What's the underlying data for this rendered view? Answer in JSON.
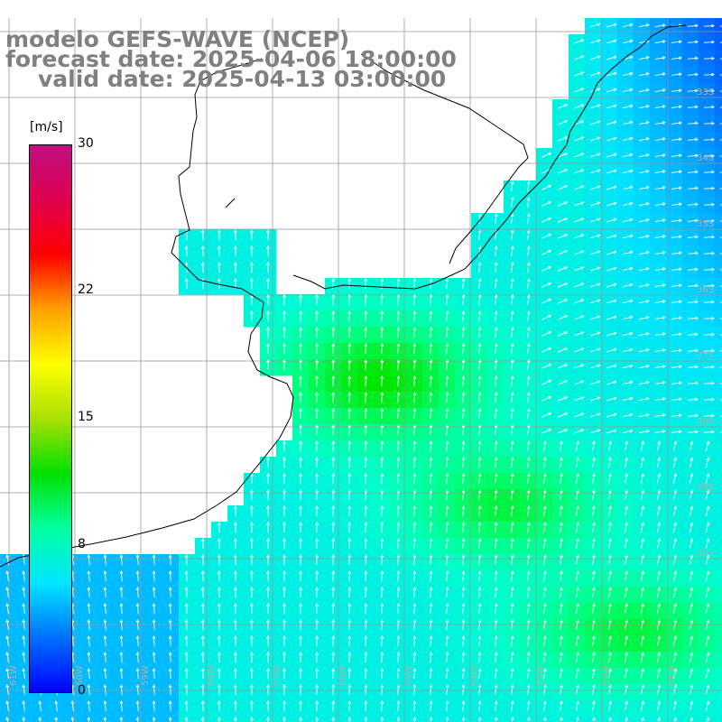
{
  "title": {
    "line1": "modelo GEFS-WAVE (NCEP)",
    "line2": "forecast date: 2025-04-06 18:00:00",
    "line3": "valid date: 2025-04-13 03:00:00"
  },
  "colorbar": {
    "unit": "[m/s]",
    "ticks": [
      {
        "label": "30",
        "value": 30
      },
      {
        "label": "22",
        "value": 22
      },
      {
        "label": "15",
        "value": 15
      },
      {
        "label": "8",
        "value": 8
      },
      {
        "label": "0",
        "value": 0
      }
    ],
    "gradient": [
      "#0000ff",
      "#0070ff",
      "#00e6ff",
      "#00ffa0",
      "#00e000",
      "#a8e000",
      "#ffff00",
      "#ffa000",
      "#ff0000",
      "#e00050",
      "#c01080"
    ]
  },
  "map": {
    "land_color": "#ffffff",
    "grid_color": "#999999",
    "lon_labels": [
      "61W",
      "60W",
      "59W",
      "58W",
      "57W",
      "56W",
      "55W",
      "54W",
      "53W",
      "52W",
      "51W"
    ],
    "lat_labels": [
      "33S",
      "34S",
      "35S",
      "36S",
      "37S",
      "38S",
      "39S",
      "40S"
    ]
  }
}
